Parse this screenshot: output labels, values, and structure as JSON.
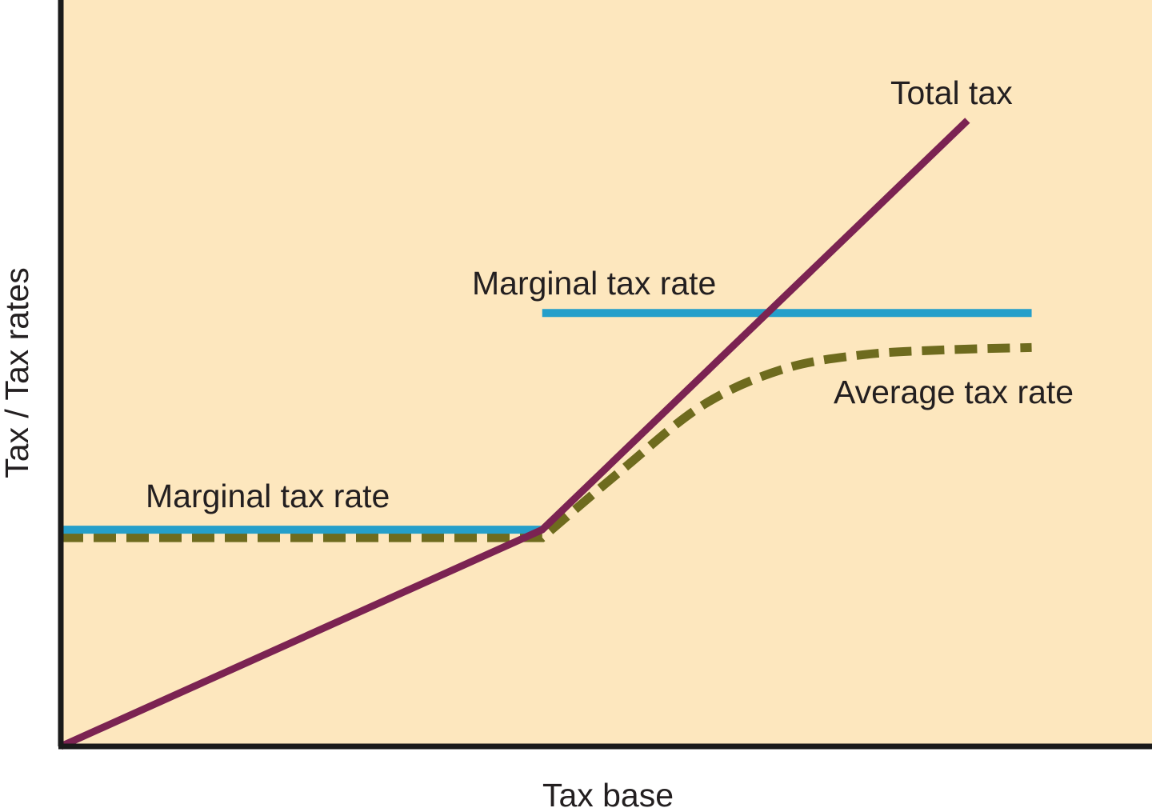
{
  "chart_data": {
    "type": "line",
    "title": "",
    "xlabel": "Tax base",
    "ylabel": "Tax / Tax rates",
    "xlim": [
      0,
      13.6
    ],
    "ylim": [
      0,
      9.3
    ],
    "grid": false,
    "legend": "none",
    "colors": {
      "plot_bg": "#fde7be",
      "axis": "#1a1a1a",
      "total_tax": "#7b2352",
      "marginal_rate": "#259fca",
      "average_rate": "#6e6b1e"
    },
    "series": [
      {
        "name": "Total tax",
        "x": [
          0,
          6,
          11.3
        ],
        "y": [
          0,
          2.7,
          7.8
        ]
      },
      {
        "name": "Marginal tax rate",
        "segments": [
          {
            "x": [
              0,
              6
            ],
            "y": [
              2.7,
              2.7
            ]
          },
          {
            "x": [
              6,
              12.1
            ],
            "y": [
              5.4,
              5.4
            ]
          }
        ]
      },
      {
        "name": "Average tax rate",
        "style": "dashed",
        "x": [
          0,
          6,
          7,
          8,
          9,
          10,
          11,
          12.1
        ],
        "y": [
          2.6,
          2.6,
          3.45,
          4.25,
          4.7,
          4.88,
          4.94,
          4.97
        ]
      }
    ],
    "annotations": [
      {
        "text": "Total tax",
        "series": "Total tax"
      },
      {
        "text": "Marginal tax rate",
        "series": "Marginal tax rate",
        "segment": 1
      },
      {
        "text": "Marginal tax rate",
        "series": "Marginal tax rate",
        "segment": 0
      },
      {
        "text": "Average tax rate",
        "series": "Average tax rate"
      }
    ]
  }
}
